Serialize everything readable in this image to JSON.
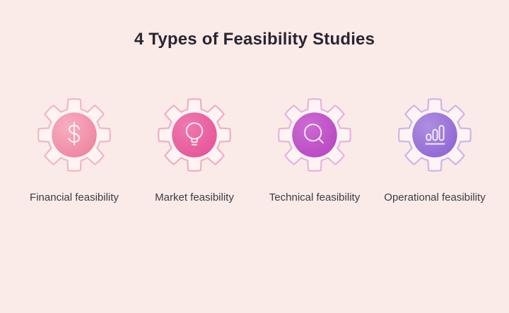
{
  "page": {
    "background": "#fbebe8"
  },
  "title": "4 Types of Feasibility Studies",
  "items": [
    {
      "label": "Financial feasibility",
      "icon": "dollar-icon",
      "gear_stroke": "#f2b7c6",
      "circle_from": "#f7afc0",
      "circle_to": "#ee84a0"
    },
    {
      "label": "Market feasibility",
      "icon": "lightbulb-icon",
      "gear_stroke": "#f0afc6",
      "circle_from": "#ef7ab0",
      "circle_to": "#e65497"
    },
    {
      "label": "Technical feasibility",
      "icon": "magnifier-icon",
      "gear_stroke": "#e9b3dd",
      "circle_from": "#cb6cd3",
      "circle_to": "#ba46c3"
    },
    {
      "label": "Operational feasibility",
      "icon": "bar-chart-icon",
      "gear_stroke": "#cfb5e9",
      "circle_from": "#ae8ee1",
      "circle_to": "#8f66d3"
    }
  ]
}
